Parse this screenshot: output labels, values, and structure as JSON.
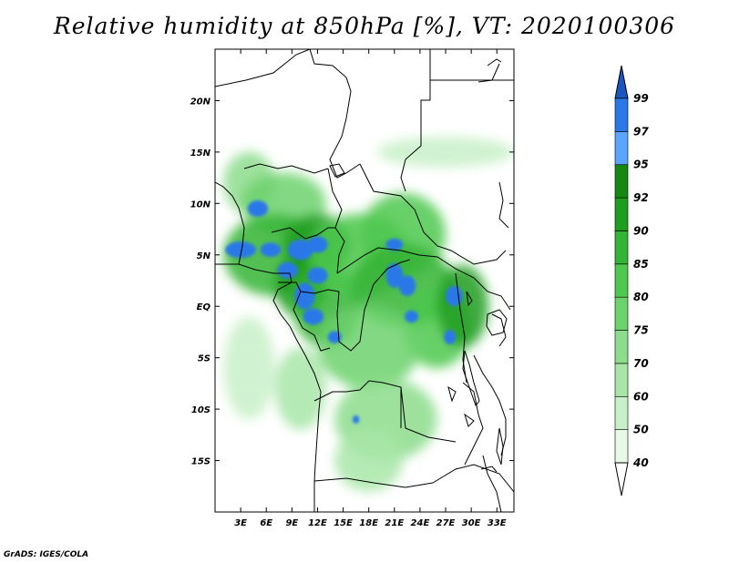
{
  "title": "Relative humidity at 850hPa [%], VT: 2020100306",
  "credit": "GrADS: IGES/COLA",
  "chart_data": {
    "type": "heatmap",
    "title": "Relative humidity at 850hPa [%], VT: 2020100306",
    "xlim": [
      0,
      35
    ],
    "ylim": [
      -20,
      25
    ],
    "x_ticks": [
      {
        "value": 3,
        "label": "3E"
      },
      {
        "value": 6,
        "label": "6E"
      },
      {
        "value": 9,
        "label": "9E"
      },
      {
        "value": 12,
        "label": "12E"
      },
      {
        "value": 15,
        "label": "15E"
      },
      {
        "value": 18,
        "label": "18E"
      },
      {
        "value": 21,
        "label": "21E"
      },
      {
        "value": 24,
        "label": "24E"
      },
      {
        "value": 27,
        "label": "27E"
      },
      {
        "value": 30,
        "label": "30E"
      },
      {
        "value": 33,
        "label": "33E"
      }
    ],
    "y_ticks": [
      {
        "value": 20,
        "label": "20N"
      },
      {
        "value": 15,
        "label": "15N"
      },
      {
        "value": 10,
        "label": "10N"
      },
      {
        "value": 5,
        "label": "5N"
      },
      {
        "value": 0,
        "label": "EQ"
      },
      {
        "value": -5,
        "label": "5S"
      },
      {
        "value": -10,
        "label": "10S"
      },
      {
        "value": -15,
        "label": "15S"
      }
    ],
    "colorbar": {
      "levels": [
        40,
        50,
        60,
        70,
        75,
        80,
        85,
        90,
        92,
        95,
        97,
        99
      ],
      "colors": [
        "#ffffff",
        "#e6fae6",
        "#c8f0c8",
        "#a8e6a8",
        "#8cdc8c",
        "#6cd26c",
        "#4ec84e",
        "#34b434",
        "#1e9e1e",
        "#128a12",
        "#5aa6ff",
        "#2a78e8",
        "#1a55c0"
      ],
      "labels": [
        "40",
        "50",
        "60",
        "70",
        "75",
        "80",
        "85",
        "90",
        "92",
        "95",
        "97",
        "99"
      ]
    },
    "humid_regions": [
      {
        "lon": 4,
        "lat": 12,
        "rx": 3,
        "ry": 3,
        "level": 3
      },
      {
        "lon": 8,
        "lat": 10,
        "rx": 5,
        "ry": 3,
        "level": 4
      },
      {
        "lon": 7,
        "lat": 5,
        "rx": 6,
        "ry": 4,
        "level": 6
      },
      {
        "lon": 12,
        "lat": 6,
        "rx": 4,
        "ry": 3,
        "level": 7
      },
      {
        "lon": 10,
        "lat": 2,
        "rx": 3,
        "ry": 3,
        "level": 7
      },
      {
        "lon": 13,
        "lat": 0,
        "rx": 4,
        "ry": 4,
        "level": 6
      },
      {
        "lon": 17,
        "lat": 5,
        "rx": 6,
        "ry": 4,
        "level": 5
      },
      {
        "lon": 22,
        "lat": 7,
        "rx": 5,
        "ry": 4,
        "level": 5
      },
      {
        "lon": 22,
        "lat": 2,
        "rx": 6,
        "ry": 4,
        "level": 6
      },
      {
        "lon": 26,
        "lat": -2,
        "rx": 4,
        "ry": 4,
        "level": 5
      },
      {
        "lon": 29,
        "lat": 0,
        "rx": 3,
        "ry": 4,
        "level": 7
      },
      {
        "lon": 18,
        "lat": -4,
        "rx": 6,
        "ry": 4,
        "level": 4
      },
      {
        "lon": 20,
        "lat": -11,
        "rx": 6,
        "ry": 4,
        "level": 3
      },
      {
        "lon": 18,
        "lat": -15,
        "rx": 4,
        "ry": 3,
        "level": 2
      },
      {
        "lon": 4,
        "lat": -6,
        "rx": 3,
        "ry": 5,
        "level": 1
      },
      {
        "lon": 10,
        "lat": -8,
        "rx": 3,
        "ry": 4,
        "level": 2
      },
      {
        "lon": 27,
        "lat": 15,
        "rx": 8,
        "ry": 1.5,
        "level": 1
      }
    ],
    "blue_patches": [
      {
        "lon": 5,
        "lat": 9.5,
        "rx": 1.2,
        "ry": 0.8
      },
      {
        "lon": 3,
        "lat": 5.5,
        "rx": 1.8,
        "ry": 0.8
      },
      {
        "lon": 6.5,
        "lat": 5.5,
        "rx": 1.2,
        "ry": 0.7
      },
      {
        "lon": 10,
        "lat": 5.5,
        "rx": 1.5,
        "ry": 1.0
      },
      {
        "lon": 12,
        "lat": 6,
        "rx": 1.2,
        "ry": 0.8
      },
      {
        "lon": 8.5,
        "lat": 3.5,
        "rx": 1.2,
        "ry": 0.8
      },
      {
        "lon": 10.5,
        "lat": 1,
        "rx": 1.2,
        "ry": 1.3
      },
      {
        "lon": 12,
        "lat": 3,
        "rx": 1.2,
        "ry": 0.8
      },
      {
        "lon": 11.5,
        "lat": -1,
        "rx": 1.2,
        "ry": 0.8
      },
      {
        "lon": 14,
        "lat": -3,
        "rx": 0.8,
        "ry": 0.6
      },
      {
        "lon": 21,
        "lat": 6,
        "rx": 1.0,
        "ry": 0.6
      },
      {
        "lon": 21,
        "lat": 3,
        "rx": 1.0,
        "ry": 1.2
      },
      {
        "lon": 22.5,
        "lat": 2,
        "rx": 1.0,
        "ry": 1.0
      },
      {
        "lon": 23,
        "lat": -1,
        "rx": 0.8,
        "ry": 0.6
      },
      {
        "lon": 28,
        "lat": 1,
        "rx": 1.0,
        "ry": 1.0
      },
      {
        "lon": 27.5,
        "lat": -3,
        "rx": 0.7,
        "ry": 0.7
      },
      {
        "lon": 16.5,
        "lat": -11,
        "rx": 0.4,
        "ry": 0.4
      }
    ]
  }
}
